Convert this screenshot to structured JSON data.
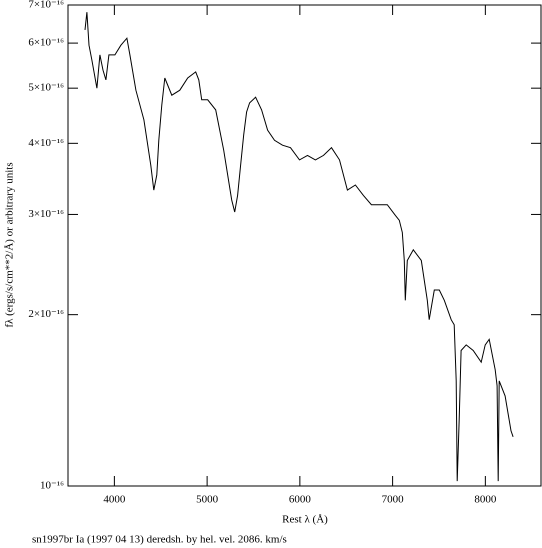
{
  "chart_data": {
    "type": "line",
    "caption": "sn1997br Ia (1997 04 13) deredsh. by hel. vel.  2086. km/s",
    "x_label": "Rest λ (Å)",
    "y_label": "fλ (ergs/s/cm**2/Å) or arbitrary units",
    "log_y": true,
    "color": "#000000",
    "xlim": [
      3500,
      8600
    ],
    "xticks": [
      4000,
      5000,
      6000,
      7000,
      8000
    ],
    "ylim": [
      1e-16,
      7e-16
    ],
    "yticks": [
      {
        "value": 1e-16,
        "label": "10⁻¹⁶"
      },
      {
        "value": 2e-16,
        "label": "2×10⁻¹⁶"
      },
      {
        "value": 3e-16,
        "label": "3×10⁻¹⁶"
      },
      {
        "value": 4e-16,
        "label": "4×10⁻¹⁶"
      },
      {
        "value": 5e-16,
        "label": "5×10⁻¹⁶"
      },
      {
        "value": 6e-16,
        "label": "6×10⁻¹⁶"
      },
      {
        "value": 7e-16,
        "label": "7×10⁻¹⁶"
      }
    ],
    "x": [
      3683,
      3704,
      3726,
      3758,
      3812,
      3844,
      3877,
      3909,
      3941,
      4006,
      4070,
      4135,
      4167,
      4232,
      4318,
      4393,
      4425,
      4458,
      4479,
      4511,
      4544,
      4619,
      4705,
      4791,
      4877,
      4910,
      4942,
      5006,
      5092,
      5179,
      5265,
      5297,
      5329,
      5361,
      5394,
      5426,
      5458,
      5523,
      5587,
      5652,
      5727,
      5813,
      5899,
      5996,
      6082,
      6168,
      6255,
      6341,
      6427,
      6513,
      6599,
      6685,
      6771,
      6857,
      6943,
      7029,
      7072,
      7105,
      7126,
      7137,
      7158,
      7223,
      7309,
      7374,
      7395,
      7449,
      7503,
      7557,
      7632,
      7664,
      7686,
      7696,
      7718,
      7739,
      7793,
      7869,
      7955,
      7998,
      8041,
      8106,
      8127,
      8138,
      8149,
      8213,
      8277,
      8299
    ],
    "values": [
      6.33e-16,
      6.8e-16,
      5.95e-16,
      5.6e-16,
      5e-16,
      5.72e-16,
      5.38e-16,
      5.17e-16,
      5.72e-16,
      5.72e-16,
      5.95e-16,
      6.12e-16,
      5.72e-16,
      4.96e-16,
      4.4e-16,
      3.66e-16,
      3.31e-16,
      3.52e-16,
      4.05e-16,
      4.67e-16,
      5.21e-16,
      4.86e-16,
      4.96e-16,
      5.21e-16,
      5.34e-16,
      5.17e-16,
      4.77e-16,
      4.77e-16,
      4.58e-16,
      3.89e-16,
      3.18e-16,
      3.03e-16,
      3.24e-16,
      3.66e-16,
      4.14e-16,
      4.54e-16,
      4.71e-16,
      4.82e-16,
      4.58e-16,
      4.22e-16,
      4.05e-16,
      3.97e-16,
      3.93e-16,
      3.74e-16,
      3.81e-16,
      3.74e-16,
      3.81e-16,
      3.93e-16,
      3.74e-16,
      3.31e-16,
      3.38e-16,
      3.24e-16,
      3.12e-16,
      3.12e-16,
      3.12e-16,
      2.99e-16,
      2.93e-16,
      2.79e-16,
      2.49e-16,
      2.12e-16,
      2.49e-16,
      2.6e-16,
      2.49e-16,
      2.12e-16,
      1.96e-16,
      2.21e-16,
      2.21e-16,
      2.12e-16,
      1.96e-16,
      1.92e-16,
      1.53e-16,
      1.02e-16,
      1.31e-16,
      1.73e-16,
      1.77e-16,
      1.73e-16,
      1.65e-16,
      1.77e-16,
      1.81e-16,
      1.6e-16,
      1.5e-16,
      1.02e-16,
      1.53e-16,
      1.44e-16,
      1.25e-16,
      1.22e-16
    ]
  }
}
